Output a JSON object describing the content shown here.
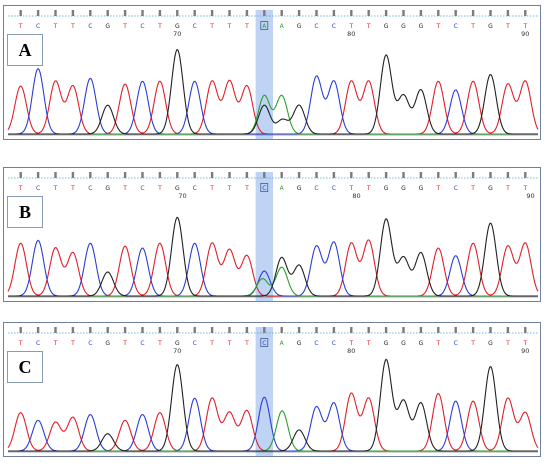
{
  "colors": {
    "A": "#2ca02c",
    "C": "#2a3fd6",
    "G": "#222222",
    "T": "#e0202a",
    "highlight": "#aac6f0",
    "frame": "#6f7f9f"
  },
  "panels": [
    {
      "label": "A",
      "bases": [
        "T",
        "C",
        "T",
        "T",
        "C",
        "G",
        "T",
        "C",
        "T",
        "G",
        "C",
        "T",
        "T",
        "T",
        "A",
        "A",
        "G",
        "C",
        "C",
        "T",
        "T",
        "G",
        "G",
        "G",
        "T",
        "C",
        "T",
        "G",
        "T",
        "T"
      ],
      "ticks": [
        {
          "after": "70",
          "index": 9
        },
        {
          "after": "80",
          "index": 19
        },
        {
          "after": "90",
          "index": 29
        }
      ],
      "tick_labels": [
        "70",
        "80",
        "90"
      ],
      "highlight_index": 14,
      "highlight_char": "A",
      "peaks": {
        "T": [
          [
            0.04,
            0.55
          ],
          [
            0.11,
            0.52
          ],
          [
            0.13,
            0.5
          ],
          [
            0.19,
            0.55
          ],
          [
            0.28,
            0.5
          ],
          [
            0.33,
            0.5
          ],
          [
            0.34,
            0.55
          ],
          [
            0.38,
            0.55
          ],
          [
            0.45,
            0.55
          ],
          [
            0.49,
            0.5
          ],
          [
            0.55,
            0.5
          ],
          [
            0.62,
            0.55
          ],
          [
            0.74,
            0.55
          ],
          [
            0.76,
            0.5
          ],
          [
            0.91,
            0.55
          ],
          [
            0.95,
            0.5
          ]
        ],
        "C": [
          [
            0.08,
            0.7
          ],
          [
            0.16,
            0.55
          ],
          [
            0.26,
            0.55
          ],
          [
            0.39,
            0.58
          ],
          [
            0.54,
            0.55
          ],
          [
            0.58,
            0.6
          ],
          [
            0.64,
            0.6
          ],
          [
            0.86,
            0.55
          ]
        ],
        "G": [
          [
            0.18,
            0.3
          ],
          [
            0.31,
            0.88
          ],
          [
            0.67,
            0.55
          ],
          [
            0.7,
            0.82
          ],
          [
            0.73,
            0.52
          ],
          [
            0.77,
            0.55
          ],
          [
            0.82,
            0.62
          ],
          [
            0.9,
            0.8
          ]
        ],
        "A": [
          [
            0.48,
            0.45
          ],
          [
            0.5,
            0.45
          ]
        ],
        "small": [
          [
            0.47,
            0.42,
            "G"
          ],
          [
            0.53,
            0.28,
            "G"
          ]
        ]
      }
    },
    {
      "label": "B",
      "bases": [
        "T",
        "C",
        "T",
        "T",
        "C",
        "G",
        "T",
        "C",
        "T",
        "G",
        "C",
        "T",
        "T",
        "T",
        "C",
        "A",
        "G",
        "C",
        "C",
        "T",
        "T",
        "G",
        "G",
        "G",
        "T",
        "C",
        "T",
        "G",
        "T",
        "T"
      ],
      "ticks": [],
      "tick_labels": [
        "70",
        "80",
        "90"
      ],
      "highlight_index": 14,
      "highlight_char": "C",
      "peaks": {}
    },
    {
      "label": "C",
      "bases": [
        "T",
        "C",
        "T",
        "T",
        "C",
        "G",
        "T",
        "C",
        "T",
        "G",
        "C",
        "T",
        "T",
        "T",
        "C",
        "A",
        "G",
        "C",
        "C",
        "T",
        "T",
        "G",
        "G",
        "G",
        "T",
        "C",
        "T",
        "G",
        "T",
        "T"
      ],
      "ticks": [],
      "tick_labels": [
        "70",
        "80",
        "90"
      ],
      "highlight_index": 14,
      "highlight_char": "C",
      "peaks": {}
    }
  ]
}
